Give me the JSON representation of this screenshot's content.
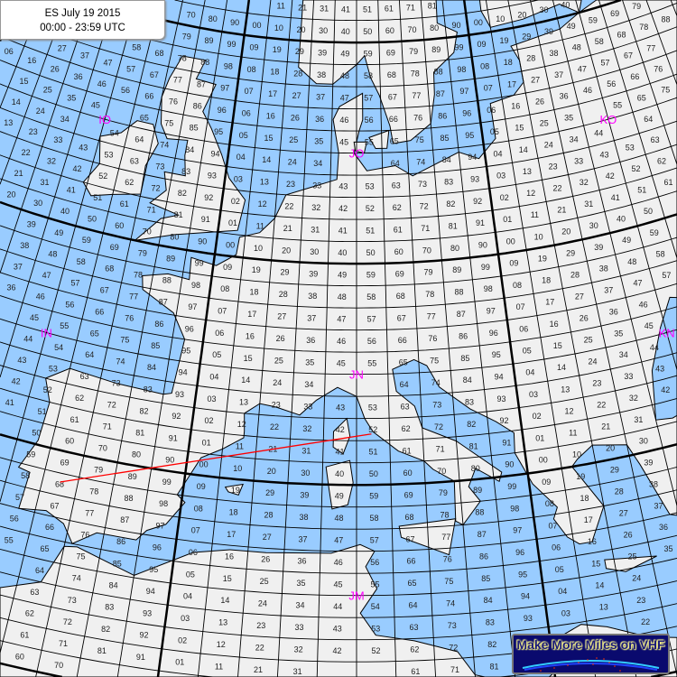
{
  "title": {
    "line1": "ES July 19 2015",
    "line2": "00:00 - 23:59 UTC"
  },
  "logo": {
    "text": "Make More Miles on VHF"
  },
  "map": {
    "grid_system": "Maidenhead locator",
    "square_size_deg": {
      "lon": 2,
      "lat": 1
    },
    "field_size_deg": {
      "lon": 20,
      "lat": 10
    },
    "fields_labeled": [
      "IO",
      "JO",
      "KO",
      "IN",
      "JN",
      "KN",
      "JM"
    ],
    "colors": {
      "sea": "#99ccff",
      "land": "#f0f0f0",
      "field_label": "#ff00ff",
      "path": "#ff0000",
      "grid": "#000000"
    },
    "path": {
      "from_deg": [
        -7.0,
        38.6
      ],
      "to_deg": [
        10.9,
        42.3
      ]
    }
  }
}
